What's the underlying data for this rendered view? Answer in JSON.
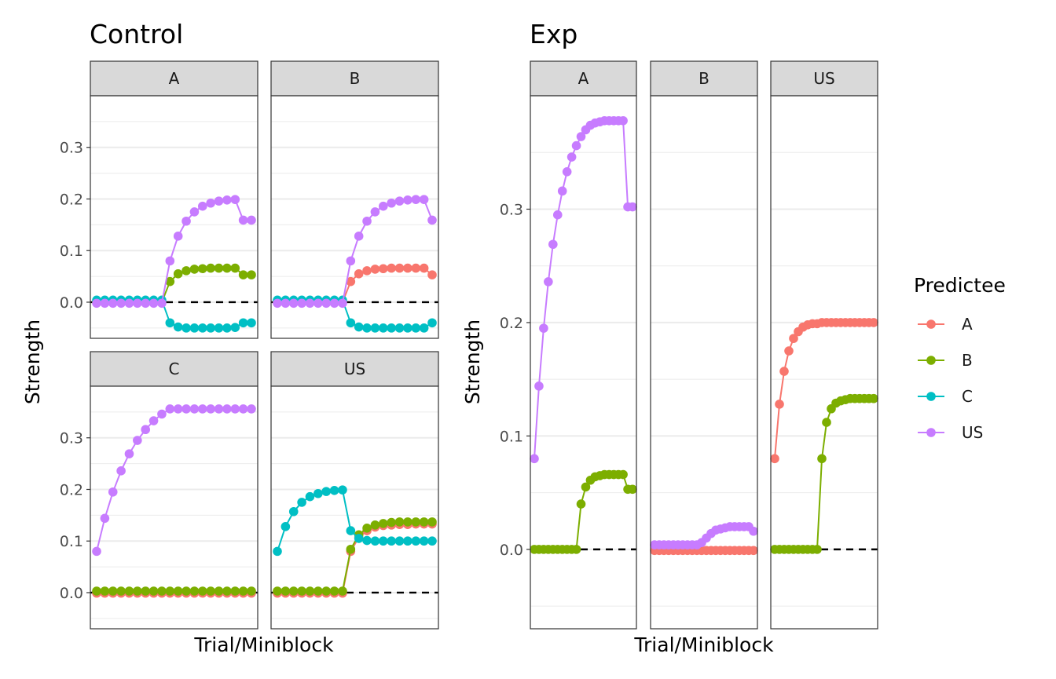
{
  "chart_data": [
    {
      "type": "line",
      "title": "Control",
      "xlabel": "Trial/Miniblock",
      "ylabel": "Strength",
      "ylim": [
        -0.07,
        0.4
      ],
      "yticks": [
        "0.0",
        "0.1",
        "0.2",
        "0.3"
      ],
      "legend": "shared, right",
      "reference_line": {
        "y": 0,
        "style": "dashed"
      },
      "facets": [
        {
          "strip": "A",
          "series": [
            {
              "name": "B",
              "values": [
                0,
                0,
                0,
                0,
                0,
                0,
                0,
                0,
                0,
                0.04,
                0.055,
                0.061,
                0.064,
                0.065,
                0.066,
                0.066,
                0.066,
                0.066,
                0.053,
                0.053
              ]
            },
            {
              "name": "C",
              "values": [
                0.004,
                0.004,
                0.004,
                0.004,
                0.004,
                0.004,
                0.004,
                0.004,
                0.004,
                -0.04,
                -0.048,
                -0.05,
                -0.05,
                -0.05,
                -0.05,
                -0.05,
                -0.05,
                -0.049,
                -0.04,
                -0.04
              ]
            },
            {
              "name": "US",
              "values": [
                -0.002,
                -0.002,
                -0.002,
                -0.002,
                -0.002,
                -0.002,
                -0.002,
                -0.002,
                -0.002,
                0.08,
                0.128,
                0.157,
                0.175,
                0.186,
                0.192,
                0.196,
                0.198,
                0.199,
                0.159,
                0.159
              ]
            }
          ]
        },
        {
          "strip": "B",
          "series": [
            {
              "name": "A",
              "values": [
                0,
                0,
                0,
                0,
                0,
                0,
                0,
                0,
                0,
                0.04,
                0.055,
                0.061,
                0.064,
                0.065,
                0.066,
                0.066,
                0.066,
                0.066,
                0.066,
                0.053
              ]
            },
            {
              "name": "C",
              "values": [
                0.004,
                0.004,
                0.004,
                0.004,
                0.004,
                0.004,
                0.004,
                0.004,
                0.004,
                -0.04,
                -0.048,
                -0.05,
                -0.05,
                -0.05,
                -0.05,
                -0.05,
                -0.05,
                -0.05,
                -0.05,
                -0.04
              ]
            },
            {
              "name": "US",
              "values": [
                -0.002,
                -0.002,
                -0.002,
                -0.002,
                -0.002,
                -0.002,
                -0.002,
                -0.002,
                -0.002,
                0.08,
                0.128,
                0.157,
                0.175,
                0.186,
                0.192,
                0.196,
                0.198,
                0.199,
                0.199,
                0.159
              ]
            }
          ]
        },
        {
          "strip": "C",
          "series": [
            {
              "name": "A",
              "values": [
                -0.001,
                -0.001,
                -0.001,
                -0.001,
                -0.001,
                -0.001,
                -0.001,
                -0.001,
                -0.001,
                -0.001,
                -0.001,
                -0.001,
                -0.001,
                -0.001,
                -0.001,
                -0.001,
                -0.001,
                -0.001,
                -0.001,
                -0.001
              ]
            },
            {
              "name": "B",
              "values": [
                0.003,
                0.003,
                0.003,
                0.003,
                0.003,
                0.003,
                0.003,
                0.003,
                0.003,
                0.003,
                0.003,
                0.003,
                0.003,
                0.003,
                0.003,
                0.003,
                0.003,
                0.003,
                0.003,
                0.003
              ]
            },
            {
              "name": "US",
              "values": [
                0.08,
                0.144,
                0.195,
                0.236,
                0.269,
                0.295,
                0.316,
                0.333,
                0.346,
                0.356,
                0.356,
                0.356,
                0.356,
                0.356,
                0.356,
                0.356,
                0.356,
                0.356,
                0.356,
                0.356
              ]
            }
          ]
        },
        {
          "strip": "US",
          "series": [
            {
              "name": "A",
              "values": [
                -0.001,
                -0.001,
                -0.001,
                -0.001,
                -0.001,
                -0.001,
                -0.001,
                -0.001,
                -0.001,
                0.08,
                0.107,
                0.12,
                0.127,
                0.13,
                0.131,
                0.132,
                0.132,
                0.133,
                0.133,
                0.133
              ]
            },
            {
              "name": "B",
              "values": [
                0.003,
                0.003,
                0.003,
                0.003,
                0.003,
                0.003,
                0.003,
                0.003,
                0.003,
                0.084,
                0.112,
                0.125,
                0.131,
                0.134,
                0.136,
                0.137,
                0.137,
                0.137,
                0.137,
                0.137
              ]
            },
            {
              "name": "C",
              "values": [
                0.08,
                0.128,
                0.157,
                0.175,
                0.186,
                0.192,
                0.196,
                0.198,
                0.199,
                0.12,
                0.105,
                0.101,
                0.1,
                0.1,
                0.1,
                0.1,
                0.1,
                0.1,
                0.1,
                0.1
              ]
            }
          ]
        }
      ]
    },
    {
      "type": "line",
      "title": "Exp",
      "xlabel": "Trial/Miniblock",
      "ylabel": "Strength",
      "ylim": [
        -0.07,
        0.4
      ],
      "yticks": [
        "0.0",
        "0.1",
        "0.2",
        "0.3"
      ],
      "legend": "shared, right",
      "reference_line": {
        "y": 0,
        "style": "dashed"
      },
      "facets": [
        {
          "strip": "A",
          "series": [
            {
              "name": "B",
              "values": [
                0,
                0,
                0,
                0,
                0,
                0,
                0,
                0,
                0,
                0,
                0.04,
                0.055,
                0.061,
                0.064,
                0.065,
                0.066,
                0.066,
                0.066,
                0.066,
                0.066,
                0.053,
                0.053
              ]
            },
            {
              "name": "US",
              "values": [
                0.08,
                0.144,
                0.195,
                0.236,
                0.269,
                0.295,
                0.316,
                0.333,
                0.346,
                0.356,
                0.364,
                0.37,
                0.374,
                0.376,
                0.377,
                0.378,
                0.378,
                0.378,
                0.378,
                0.378,
                0.302,
                0.302
              ]
            }
          ]
        },
        {
          "strip": "B",
          "series": [
            {
              "name": "A",
              "values": [
                -0.001,
                -0.001,
                -0.001,
                -0.001,
                -0.001,
                -0.001,
                -0.001,
                -0.001,
                -0.001,
                -0.001,
                -0.001,
                -0.001,
                -0.001,
                -0.001,
                -0.001,
                -0.001,
                -0.001,
                -0.001,
                -0.001,
                -0.001,
                -0.001,
                -0.001
              ]
            },
            {
              "name": "US",
              "values": [
                0.004,
                0.004,
                0.004,
                0.004,
                0.004,
                0.004,
                0.004,
                0.004,
                0.004,
                0.004,
                0.006,
                0.01,
                0.014,
                0.017,
                0.018,
                0.019,
                0.02,
                0.02,
                0.02,
                0.02,
                0.02,
                0.016
              ]
            }
          ]
        },
        {
          "strip": "US",
          "series": [
            {
              "name": "A",
              "values": [
                0.08,
                0.128,
                0.157,
                0.175,
                0.186,
                0.192,
                0.196,
                0.198,
                0.199,
                0.199,
                0.2,
                0.2,
                0.2,
                0.2,
                0.2,
                0.2,
                0.2,
                0.2,
                0.2,
                0.2,
                0.2,
                0.2
              ]
            },
            {
              "name": "B",
              "values": [
                0,
                0,
                0,
                0,
                0,
                0,
                0,
                0,
                0,
                0,
                0.08,
                0.112,
                0.124,
                0.129,
                0.131,
                0.132,
                0.133,
                0.133,
                0.133,
                0.133,
                0.133,
                0.133
              ]
            }
          ]
        }
      ]
    }
  ],
  "legend": {
    "title": "Predictee",
    "items": [
      {
        "label": "A",
        "color": "#F8766D"
      },
      {
        "label": "B",
        "color": "#7CAE00"
      },
      {
        "label": "C",
        "color": "#00BFC4"
      },
      {
        "label": "US",
        "color": "#C77CFF"
      }
    ]
  },
  "colors": {
    "A": "#F8766D",
    "B": "#7CAE00",
    "C": "#00BFC4",
    "US": "#C77CFF",
    "strip_bg": "#D9D9D9",
    "grid": "#EBEBEB"
  }
}
